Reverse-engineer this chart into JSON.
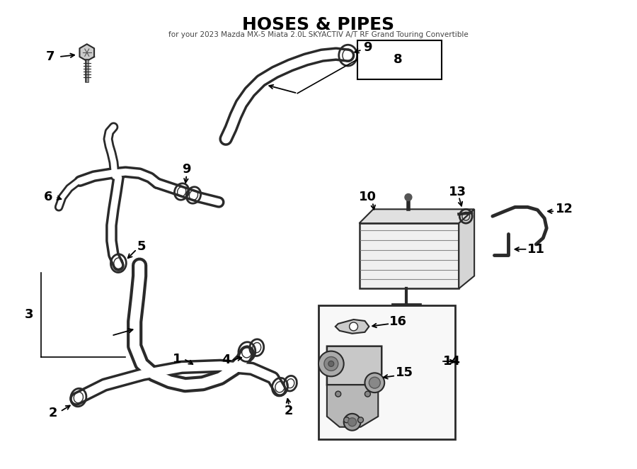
{
  "title": "HOSES & PIPES",
  "subtitle": "for your 2023 Mazda MX-5 Miata 2.0L SKYACTIV A/T RF Grand Touring Convertible",
  "bg_color": "#ffffff",
  "line_color": "#2a2a2a",
  "fig_width": 9.0,
  "fig_height": 6.62,
  "dpi": 100,
  "hose_outer_lw": 9,
  "hose_inner_lw": 5,
  "hose_color": "#2a2a2a",
  "hose_inner": "#ffffff",
  "label_fontsize": 13
}
